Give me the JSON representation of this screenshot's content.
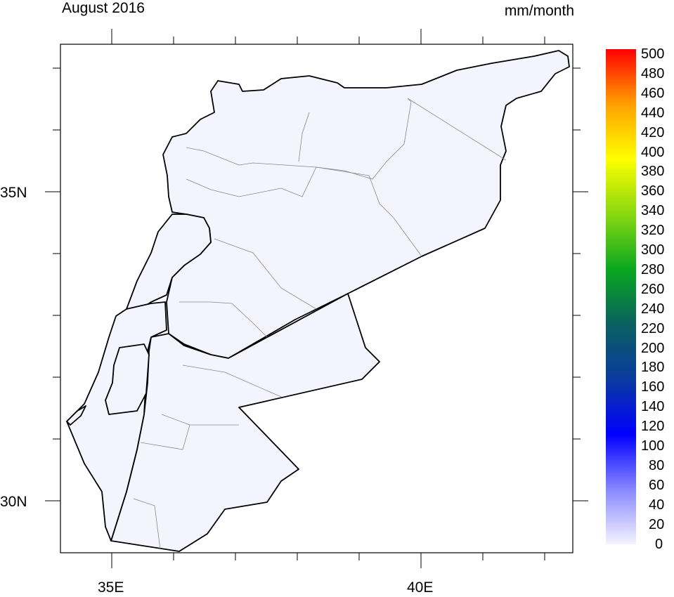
{
  "title": "August 2016",
  "units": "mm/month",
  "map": {
    "region": "Syria, Lebanon, Israel, Palestine, Jordan",
    "variable": "precipitation",
    "fill_color": "#f4f4ff",
    "border_color": "#000000",
    "admin_color": "#888888",
    "lon_range": [
      34.17,
      42.45
    ],
    "lat_range": [
      29.16,
      37.39
    ],
    "x_labels": [
      "35E",
      "40E"
    ],
    "y_labels": [
      "35N",
      "30N"
    ]
  },
  "colorbar": {
    "min": 0,
    "max": 500,
    "labels": [
      "500",
      "480",
      "460",
      "440",
      "420",
      "400",
      "380",
      "360",
      "340",
      "320",
      "300",
      "280",
      "260",
      "240",
      "220",
      "200",
      "180",
      "160",
      "140",
      "120",
      "100",
      "80",
      "60",
      "40",
      "20",
      "0"
    ],
    "colors": [
      "#f4f4ff",
      "#8888ff",
      "#0000ff",
      "#0a3aa0",
      "#0a6060",
      "#0aa820",
      "#88d810",
      "#ffff00",
      "#ffa000",
      "#ff0000"
    ]
  }
}
